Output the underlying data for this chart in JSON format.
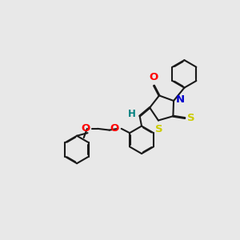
{
  "bg_color": "#e8e8e8",
  "bond_color": "#1a1a1a",
  "bond_width": 1.5,
  "dbo": 0.018,
  "atom_colors": {
    "O": "#ff0000",
    "N": "#0000cc",
    "S": "#cccc00",
    "H": "#008080",
    "C": "#1a1a1a"
  },
  "font_size": 8.5
}
